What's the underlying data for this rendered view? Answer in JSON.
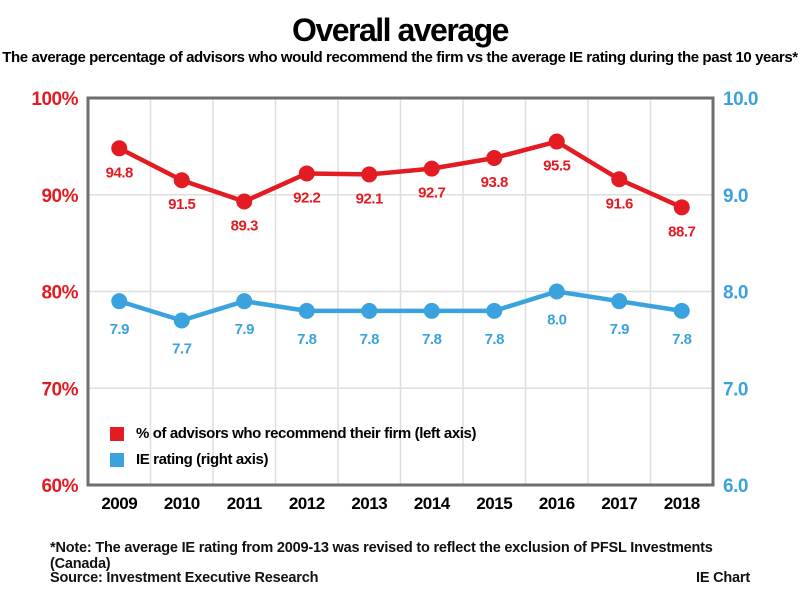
{
  "header": {
    "title": "Overall average",
    "subtitle": "The average percentage of advisors who would recommend the firm vs the average IE rating during the past 10 years*"
  },
  "legend": {
    "items": [
      {
        "label": "% of advisors who recommend their firm (left axis)",
        "color": "#e31b23"
      },
      {
        "label": "IE rating (right axis)",
        "color": "#3aa3dd"
      }
    ]
  },
  "footer": {
    "note": "*Note: The average IE rating from 2009-13 was revised to reflect the exclusion of PFSL Investments (Canada)",
    "source": "Source: Investment Executive Research",
    "credit": "IE Chart"
  },
  "colors": {
    "red_series": "#e31b23",
    "blue_series": "#3aa3dd",
    "frame": "#6e6e6e",
    "gridline": "#dedede",
    "year_label": "#000000"
  },
  "chart_data": {
    "type": "line",
    "categories": [
      "2009",
      "2010",
      "2011",
      "2012",
      "2013",
      "2014",
      "2015",
      "2016",
      "2017",
      "2018"
    ],
    "series": [
      {
        "name": "% of advisors who recommend their firm (left axis)",
        "axis": "left",
        "color": "#e31b23",
        "values": [
          94.8,
          91.5,
          89.3,
          92.2,
          92.1,
          92.7,
          93.8,
          95.5,
          91.6,
          88.7
        ],
        "labels": [
          "94.8",
          "91.5",
          "89.3",
          "92.2",
          "92.1",
          "92.7",
          "93.8",
          "95.5",
          "91.6",
          "88.7"
        ]
      },
      {
        "name": "IE rating (right axis)",
        "axis": "right",
        "color": "#3aa3dd",
        "values": [
          7.9,
          7.7,
          7.9,
          7.8,
          7.8,
          7.8,
          7.8,
          8.0,
          7.9,
          7.8
        ],
        "labels": [
          "7.9",
          "7.7",
          "7.9",
          "7.8",
          "7.8",
          "7.8",
          "7.8",
          "8.0",
          "7.9",
          "7.8"
        ]
      }
    ],
    "left_axis": {
      "min": 60,
      "max": 100,
      "tick_labels": [
        "100%",
        "90%",
        "80%",
        "70%",
        "60%"
      ],
      "tick_values": [
        100,
        90,
        80,
        70,
        60
      ],
      "color": "#e31b23"
    },
    "right_axis": {
      "min": 6,
      "max": 10,
      "tick_labels": [
        "10.0",
        "9.0",
        "8.0",
        "7.0",
        "6.0"
      ],
      "tick_values": [
        10,
        9,
        8,
        7,
        6
      ],
      "color": "#3aa3dd"
    },
    "grid": true,
    "legend_position": "inside-bottom-left",
    "title": "Overall average",
    "xlabel": "",
    "ylabel_left": "% of advisors who recommend their firm",
    "ylabel_right": "IE rating"
  }
}
